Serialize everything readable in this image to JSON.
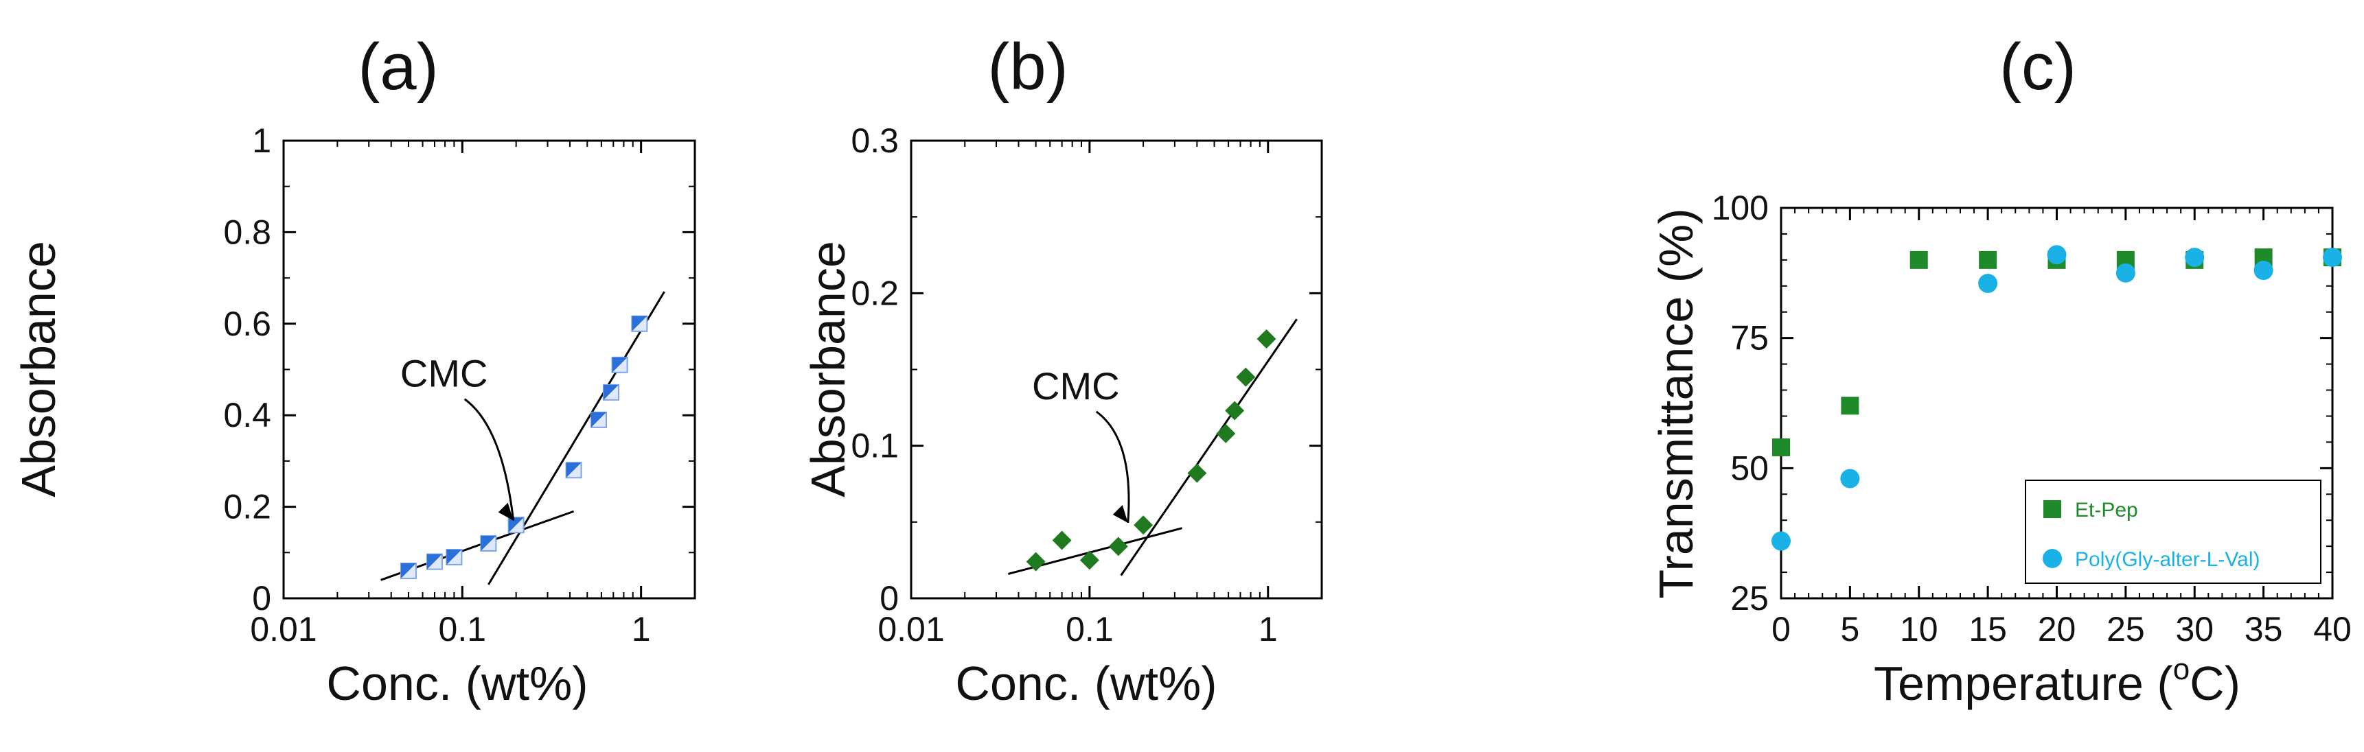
{
  "chart_data": [
    {
      "type": "scatter",
      "panel_label": "(a)",
      "xlabel": "Conc. (wt%)",
      "ylabel": "Absorbance",
      "xscale": "log",
      "xlim": [
        0.01,
        2
      ],
      "ylim": [
        0,
        1
      ],
      "xticks": [
        0.01,
        0.1,
        1
      ],
      "xtick_labels": [
        "0.01",
        "0.1",
        "1"
      ],
      "yticks": [
        0,
        0.2,
        0.4,
        0.6,
        0.8,
        1
      ],
      "ytick_labels": [
        "0",
        "0.2",
        "0.4",
        "0.6",
        "0.8",
        "1"
      ],
      "marker_color": "#2b6fd8",
      "series": [
        {
          "name": "data",
          "marker": "half-square",
          "x": [
            0.05,
            0.07,
            0.09,
            0.14,
            0.2,
            0.42,
            0.58,
            0.68,
            0.76,
            0.98
          ],
          "y": [
            0.06,
            0.08,
            0.09,
            0.12,
            0.16,
            0.28,
            0.39,
            0.45,
            0.51,
            0.6
          ]
        }
      ],
      "fit_lines": [
        {
          "x": [
            0.035,
            0.42
          ],
          "y": [
            0.04,
            0.19
          ]
        },
        {
          "x": [
            0.14,
            1.35
          ],
          "y": [
            0.03,
            0.67
          ]
        }
      ],
      "annotation": {
        "text": "CMC",
        "x": 0.2,
        "y": 0.155
      }
    },
    {
      "type": "scatter",
      "panel_label": "(b)",
      "xlabel": "Conc. (wt%)",
      "ylabel": "Absorbance",
      "xscale": "log",
      "xlim": [
        0.01,
        2
      ],
      "ylim": [
        0,
        0.3
      ],
      "xticks": [
        0.01,
        0.1,
        1
      ],
      "xtick_labels": [
        "0.01",
        "0.1",
        "1"
      ],
      "yticks": [
        0,
        0.1,
        0.2,
        0.3
      ],
      "ytick_labels": [
        "0",
        "0.1",
        "0.2",
        "0.3"
      ],
      "marker_color": "#1f7a1f",
      "series": [
        {
          "name": "data",
          "marker": "diamond",
          "x": [
            0.05,
            0.07,
            0.1,
            0.145,
            0.2,
            0.4,
            0.58,
            0.65,
            0.75,
            0.98
          ],
          "y": [
            0.024,
            0.038,
            0.025,
            0.034,
            0.048,
            0.082,
            0.108,
            0.123,
            0.145,
            0.17
          ]
        }
      ],
      "fit_lines": [
        {
          "x": [
            0.035,
            0.33
          ],
          "y": [
            0.016,
            0.046
          ]
        },
        {
          "x": [
            0.15,
            1.45
          ],
          "y": [
            0.015,
            0.183
          ]
        }
      ],
      "annotation": {
        "text": "CMC",
        "x": 0.17,
        "y": 0.045
      }
    },
    {
      "type": "scatter",
      "panel_label": "(c)",
      "xlabel": "Temperature (",
      "xlabel_sup": "o",
      "xlabel_tail": "C)",
      "ylabel": "Transmittance (%)",
      "xlim": [
        0,
        40
      ],
      "ylim": [
        25,
        100
      ],
      "xticks": [
        0,
        5,
        10,
        15,
        20,
        25,
        30,
        35,
        40
      ],
      "xtick_labels": [
        "0",
        "5",
        "10",
        "15",
        "20",
        "25",
        "30",
        "35",
        "40"
      ],
      "yticks": [
        25,
        50,
        75,
        100
      ],
      "ytick_labels": [
        "25",
        "50",
        "75",
        "100"
      ],
      "series": [
        {
          "name": "Et-Pep",
          "marker": "square",
          "color": "#1f8a2a",
          "x": [
            0,
            5,
            10,
            15,
            20,
            25,
            30,
            35,
            40
          ],
          "y": [
            54,
            62,
            90,
            90,
            90,
            90,
            90,
            90.5,
            90.5
          ]
        },
        {
          "name": "Poly(Gly-alter-L-Val)",
          "marker": "circle",
          "color": "#1ab2e6",
          "x": [
            0,
            5,
            15,
            20,
            25,
            30,
            35,
            40
          ],
          "y": [
            36,
            48,
            85.5,
            91,
            87.5,
            90.5,
            88,
            90.5
          ]
        }
      ],
      "legend_position": "lower-right"
    }
  ]
}
